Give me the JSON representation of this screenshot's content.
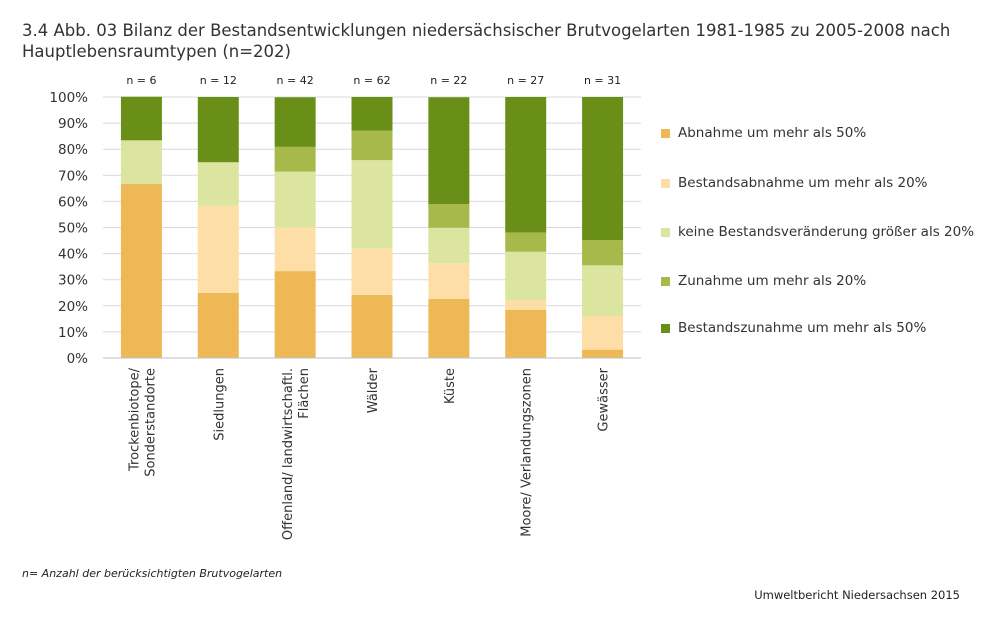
{
  "title": "3.4 Abb. 03 Bilanz der Bestandsentwicklungen niedersächsischer Brutvogelarten 1981-1985 zu 2005-2008 nach Hauptlebensraumtypen (n=202)",
  "footnote": "n= Anzahl der berücksichtigten Brutvogelarten",
  "source": "Umweltbericht Niedersachsen 2015",
  "chart_data": {
    "type": "bar",
    "stacked": true,
    "title": "3.4 Abb. 03 Bilanz der Bestandsentwicklungen niedersächsischer Brutvogelarten 1981-1985 zu 2005-2008 nach Hauptlebensraumtypen (n=202)",
    "xlabel": "",
    "ylabel": "",
    "ylim": [
      0,
      100
    ],
    "yticks": [
      "0%",
      "10%",
      "20%",
      "30%",
      "40%",
      "50%",
      "60%",
      "70%",
      "80%",
      "90%",
      "100%"
    ],
    "grid": true,
    "legend_position": "right",
    "categories": [
      "Trockenbiotope/ Sonderstandorte",
      "Siedlungen",
      "Offenland/ landwirtschaftl. Flächen",
      "Wälder",
      "Küste",
      "Moore/ Verlandungszonen",
      "Gewässer"
    ],
    "n_labels": [
      "n = 6",
      "n = 12",
      "n = 42",
      "n = 62",
      "n = 22",
      "n = 27",
      "n = 31"
    ],
    "series": [
      {
        "name": "Abnahme um mehr als 50%",
        "color": "#efb857",
        "values": [
          66.7,
          25.0,
          33.3,
          24.2,
          22.7,
          18.5,
          3.2
        ]
      },
      {
        "name": "Bestandsabnahme um mehr als 20%",
        "color": "#fddea6",
        "values": [
          0,
          33.3,
          16.7,
          17.7,
          13.6,
          3.7,
          12.9
        ]
      },
      {
        "name": "keine Bestandsveränderung größer als 20%",
        "color": "#dce59f",
        "values": [
          16.7,
          16.7,
          21.4,
          33.9,
          13.6,
          18.5,
          19.4
        ]
      },
      {
        "name": "Zunahme um mehr als 20%",
        "color": "#a7b94b",
        "values": [
          0,
          0,
          9.5,
          11.3,
          9.1,
          7.4,
          9.7
        ]
      },
      {
        "name": "Bestandszunahme um mehr als 50%",
        "color": "#6a8f19",
        "values": [
          16.7,
          25.0,
          19.0,
          12.9,
          40.9,
          51.9,
          54.8
        ]
      }
    ]
  }
}
